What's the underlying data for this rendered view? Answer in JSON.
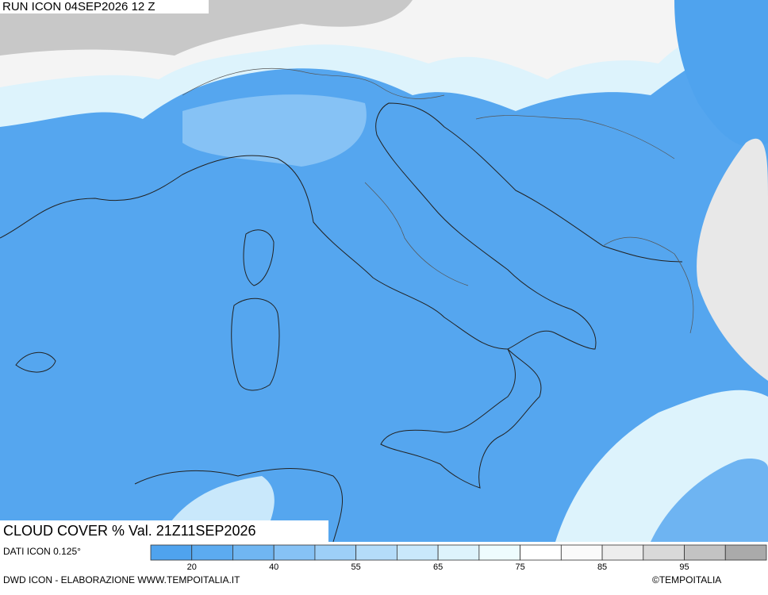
{
  "header": {
    "run": "RUN ICON 04SEP2026 12 Z"
  },
  "map": {
    "title": "CLOUD COVER % Val. 21Z11SEP2026"
  },
  "footer": {
    "data_source": "DATI ICON 0.125°",
    "credits": "DWD ICON - ELABORAZIONE WWW.TEMPOITALIA.IT",
    "copyright": "©TEMPOITALIA"
  },
  "legend": {
    "colors": [
      "#4fa3ee",
      "#5cabf0",
      "#70b6f2",
      "#86c2f5",
      "#9dcff7",
      "#b4dcf9",
      "#c9e8fb",
      "#ddf3fc",
      "#eefcfe",
      "#ffffff",
      "#fafafa",
      "#ededed",
      "#d9d9d9",
      "#c3c3c3",
      "#aaaaaa"
    ],
    "ticks": [
      20,
      40,
      55,
      65,
      75,
      85,
      95
    ]
  }
}
